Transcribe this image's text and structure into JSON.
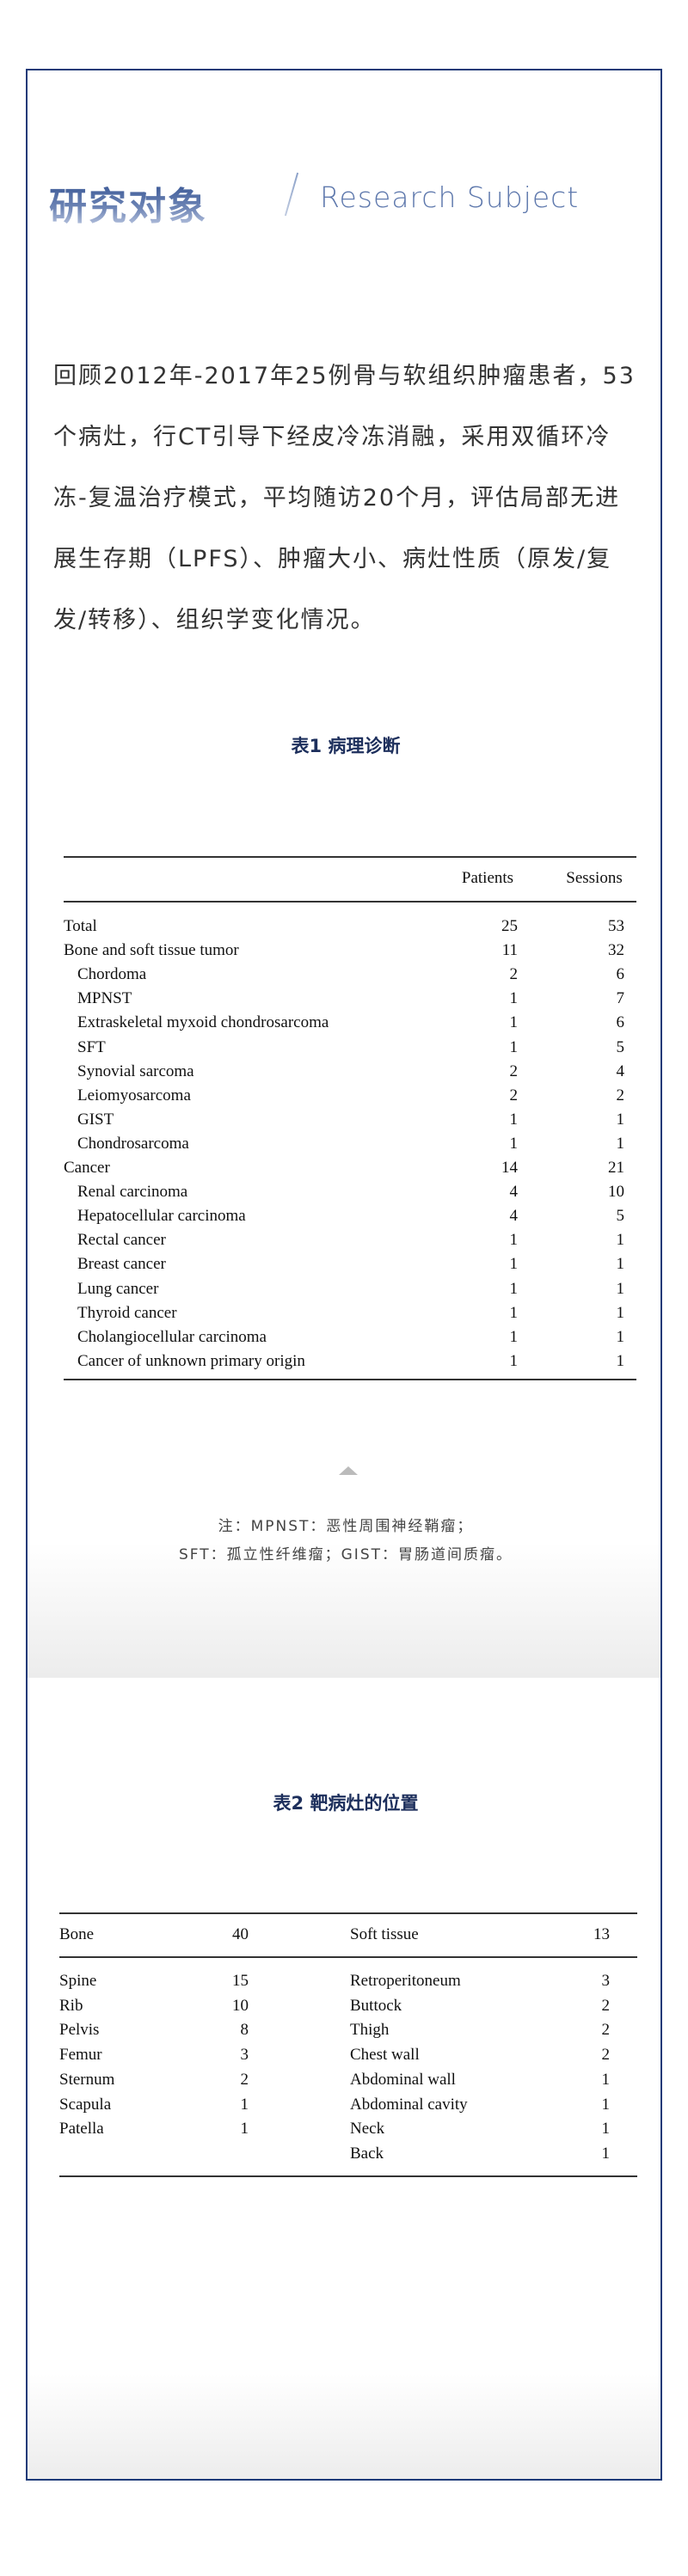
{
  "header": {
    "title_cn": "研究对象",
    "title_en": "Research Subject"
  },
  "intro": "回顾2012年-2017年25例骨与软组织肿瘤患者，53个病灶，行CT引导下经皮冷冻消融，采用双循环冷冻-复温治疗模式，平均随访20个月，评估局部无进展生存期（LPFS）、肿瘤大小、病灶性质（原发/复发/转移）、组织学变化情况。",
  "table1": {
    "caption": "表1 病理诊断",
    "headers": [
      "",
      "Patients",
      "Sessions"
    ],
    "rows": [
      {
        "label": "Total",
        "patients": "25",
        "sessions": "53",
        "indent": false
      },
      {
        "label": "Bone and soft tissue tumor",
        "patients": "11",
        "sessions": "32",
        "indent": false
      },
      {
        "label": "Chordoma",
        "patients": "2",
        "sessions": "6",
        "indent": true
      },
      {
        "label": "MPNST",
        "patients": "1",
        "sessions": "7",
        "indent": true
      },
      {
        "label": "Extraskeletal myxoid chondrosarcoma",
        "patients": "1",
        "sessions": "6",
        "indent": true
      },
      {
        "label": "SFT",
        "patients": "1",
        "sessions": "5",
        "indent": true
      },
      {
        "label": "Synovial sarcoma",
        "patients": "2",
        "sessions": "4",
        "indent": true
      },
      {
        "label": "Leiomyosarcoma",
        "patients": "2",
        "sessions": "2",
        "indent": true
      },
      {
        "label": "GIST",
        "patients": "1",
        "sessions": "1",
        "indent": true
      },
      {
        "label": "Chondrosarcoma",
        "patients": "1",
        "sessions": "1",
        "indent": true
      },
      {
        "label": "Cancer",
        "patients": "14",
        "sessions": "21",
        "indent": false
      },
      {
        "label": "Renal carcinoma",
        "patients": "4",
        "sessions": "10",
        "indent": true
      },
      {
        "label": "Hepatocellular carcinoma",
        "patients": "4",
        "sessions": "5",
        "indent": true
      },
      {
        "label": "Rectal cancer",
        "patients": "1",
        "sessions": "1",
        "indent": true
      },
      {
        "label": "Breast cancer",
        "patients": "1",
        "sessions": "1",
        "indent": true
      },
      {
        "label": "Lung cancer",
        "patients": "1",
        "sessions": "1",
        "indent": true
      },
      {
        "label": "Thyroid cancer",
        "patients": "1",
        "sessions": "1",
        "indent": true
      },
      {
        "label": "Cholangiocellular carcinoma",
        "patients": "1",
        "sessions": "1",
        "indent": true
      },
      {
        "label": "Cancer of unknown primary origin",
        "patients": "1",
        "sessions": "1",
        "indent": true
      }
    ],
    "note_lines": [
      "注：MPNST：恶性周围神经鞘瘤；",
      "SFT：孤立性纤维瘤；GIST：胃肠道间质瘤。"
    ]
  },
  "table2": {
    "caption": "表2 靶病灶的位置",
    "header": {
      "bone": "Bone",
      "bone_count": "40",
      "soft": "Soft tissue",
      "soft_count": "13"
    },
    "bone_rows": [
      [
        "Spine",
        "15"
      ],
      [
        "Rib",
        "10"
      ],
      [
        "Pelvis",
        "8"
      ],
      [
        "Femur",
        "3"
      ],
      [
        "Sternum",
        "2"
      ],
      [
        "Scapula",
        "1"
      ],
      [
        "Patella",
        "1"
      ]
    ],
    "soft_rows": [
      [
        "Retroperitoneum",
        "3"
      ],
      [
        "Buttock",
        "2"
      ],
      [
        "Thigh",
        "2"
      ],
      [
        "Chest wall",
        "2"
      ],
      [
        "Abdominal wall",
        "1"
      ],
      [
        "Abdominal cavity",
        "1"
      ],
      [
        "Neck",
        "1"
      ],
      [
        "Back",
        "1"
      ]
    ]
  },
  "colors": {
    "frame": "#1d3a78",
    "caption": "#1d2f5c",
    "title_en": "#5f79ad"
  }
}
